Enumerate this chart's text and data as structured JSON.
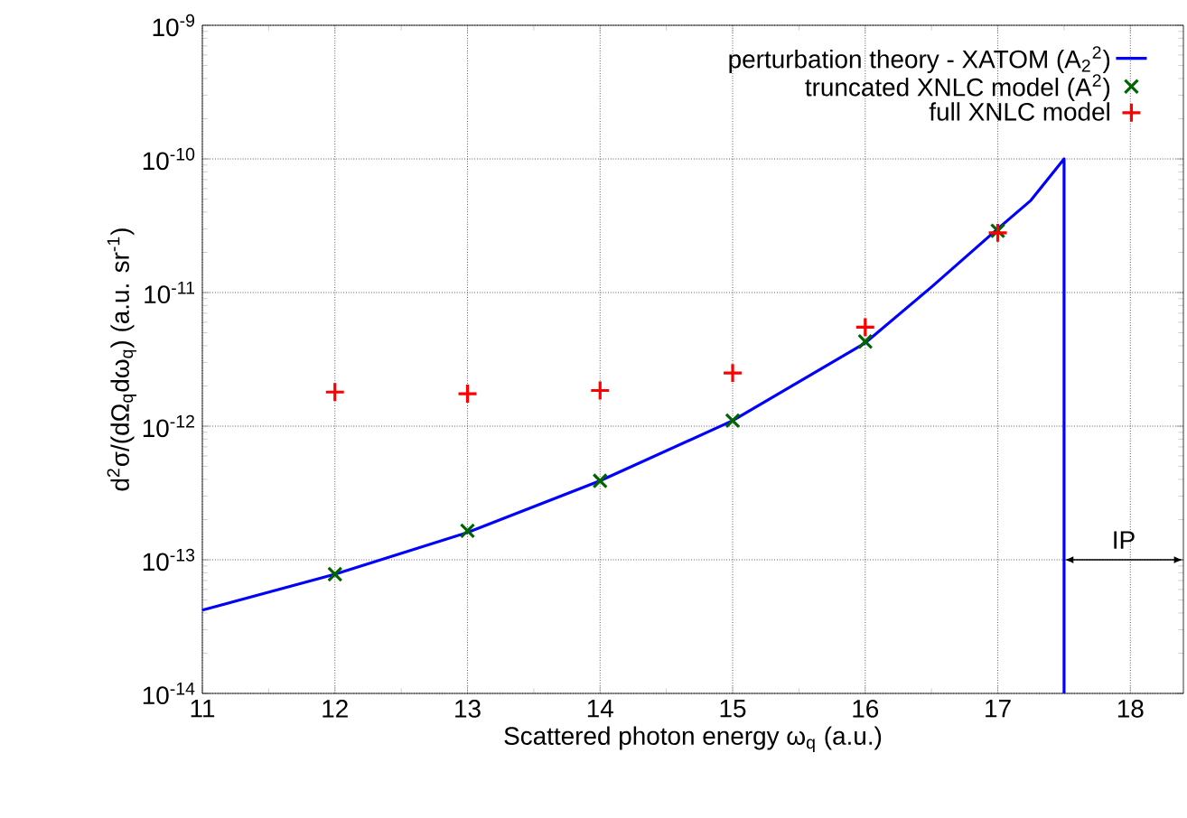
{
  "chart_data": {
    "type": "line",
    "xlabel": "Scattered photon energy ω$_{q}$ (a.u.)",
    "ylabel": "d$^{2}$σ/(dΩ$_{q}$dω$_{q}$) (a.u. sr$^{-1}$)",
    "log": "y",
    "grid": true,
    "legend": "top right",
    "xlim": [
      11,
      18.4
    ],
    "ylim": [
      1e-14,
      1e-09
    ],
    "xticks": [
      11,
      12,
      13,
      14,
      15,
      16,
      17,
      18
    ],
    "yticks": [
      {
        "value": 1e-14,
        "label": "10$^{-14}$"
      },
      {
        "value": 1e-13,
        "label": "10$^{-13}$"
      },
      {
        "value": 1e-12,
        "label": "10$^{-12}$"
      },
      {
        "value": 1e-11,
        "label": "10$^{-11}$"
      },
      {
        "value": 1e-10,
        "label": "10$^{-10}$"
      },
      {
        "value": 1e-09,
        "label": "10$^{-9}$"
      }
    ],
    "series": [
      {
        "name": "perturbation theory - XATOM (A$_{2}$$^{2}$)",
        "color": "#0000ff",
        "marker": "none",
        "line_style": "solid",
        "x": [
          11,
          12,
          13,
          14,
          15,
          16,
          16.5,
          17,
          17.25,
          17.5,
          17.5
        ],
        "values": [
          4.2e-14,
          7.8e-14,
          1.6e-13,
          3.9e-13,
          1.1e-12,
          4.2e-12,
          1.1e-11,
          3e-11,
          4.9e-11,
          1e-10,
          1e-14
        ]
      },
      {
        "name": "truncated XNLC model (A$^{2}$)",
        "type": "scatter",
        "color": "#006400",
        "marker": "cross",
        "x": [
          12,
          13,
          14,
          15,
          16,
          17
        ],
        "values": [
          7.8e-14,
          1.65e-13,
          3.9e-13,
          1.1e-12,
          4.3e-12,
          2.9e-11
        ]
      },
      {
        "name": "full XNLC model",
        "type": "scatter",
        "color": "#ff0000",
        "marker": "plus",
        "x": [
          12,
          13,
          14,
          15,
          16,
          17
        ],
        "values": [
          1.8e-12,
          1.75e-12,
          1.85e-12,
          2.5e-12,
          5.5e-12,
          2.8e-11
        ]
      }
    ],
    "annotations": [
      "IP"
    ]
  }
}
